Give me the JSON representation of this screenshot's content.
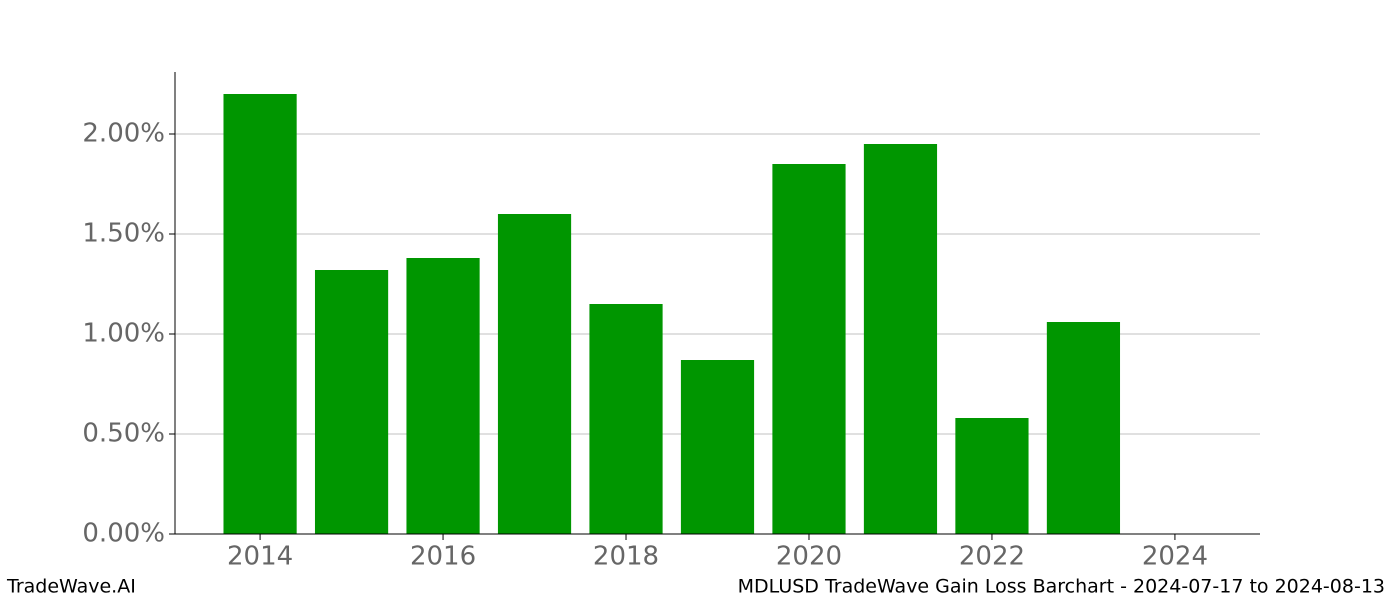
{
  "chart_data": {
    "type": "bar",
    "x": [
      2014,
      2015,
      2016,
      2017,
      2018,
      2019,
      2020,
      2021,
      2022,
      2023
    ],
    "values": [
      2.2,
      1.32,
      1.38,
      1.6,
      1.15,
      0.87,
      1.85,
      1.95,
      0.58,
      1.06
    ],
    "color": "#009600",
    "xlim": [
      2013.07,
      2024.93
    ],
    "xticks": [
      2014,
      2016,
      2018,
      2020,
      2022,
      2024
    ],
    "ylim": [
      0,
      2.31
    ],
    "yticks": [
      {
        "value": 0,
        "label": "0.00%"
      },
      {
        "value": 0.5,
        "label": "0.50%"
      },
      {
        "value": 1,
        "label": "1.00%"
      },
      {
        "value": 1.5,
        "label": "1.50%"
      },
      {
        "value": 2,
        "label": "2.00%"
      }
    ],
    "grid": true,
    "footer_left": "TradeWave.AI",
    "footer_right": "MDLUSD TradeWave Gain Loss Barchart - 2024-07-17 to 2024-08-13"
  }
}
